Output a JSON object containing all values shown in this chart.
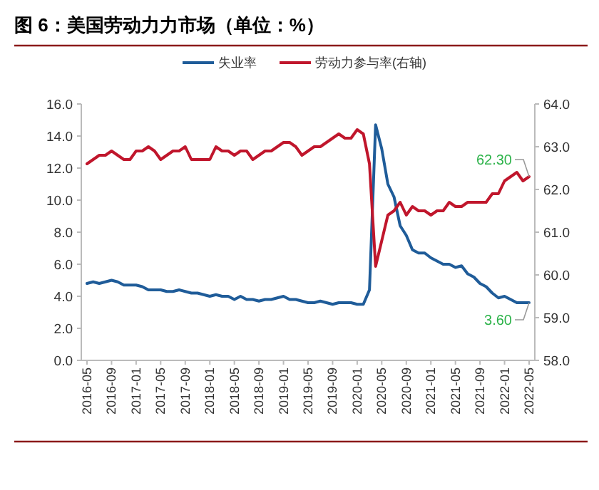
{
  "chart_data": {
    "type": "line",
    "title": "图 6：美国劳动力力市场（单位：%）",
    "categories": [
      "2016-05",
      null,
      null,
      null,
      "2016-09",
      null,
      null,
      null,
      "2017-01",
      null,
      null,
      null,
      "2017-05",
      null,
      null,
      null,
      "2017-09",
      null,
      null,
      null,
      "2018-01",
      null,
      null,
      null,
      "2018-05",
      null,
      null,
      null,
      "2018-09",
      null,
      null,
      null,
      "2019-01",
      null,
      null,
      null,
      "2019-05",
      null,
      null,
      null,
      "2019-09",
      null,
      null,
      null,
      "2020-01",
      null,
      null,
      null,
      "2020-05",
      null,
      null,
      null,
      "2020-09",
      null,
      null,
      null,
      "2021-01",
      null,
      null,
      null,
      "2021-05",
      null,
      null,
      null,
      "2021-09",
      null,
      null,
      null,
      "2022-01",
      null,
      null,
      null,
      "2022-05"
    ],
    "series": [
      {
        "name": "失业率",
        "color": "#1f5c99",
        "values": [
          4.8,
          4.9,
          4.8,
          4.9,
          5.0,
          4.9,
          4.7,
          4.7,
          4.7,
          4.6,
          4.4,
          4.4,
          4.4,
          4.3,
          4.3,
          4.4,
          4.3,
          4.2,
          4.2,
          4.1,
          4.0,
          4.1,
          4.0,
          4.0,
          3.8,
          4.0,
          3.8,
          3.8,
          3.7,
          3.8,
          3.8,
          3.9,
          4.0,
          3.8,
          3.8,
          3.7,
          3.6,
          3.6,
          3.7,
          3.6,
          3.5,
          3.6,
          3.6,
          3.6,
          3.5,
          3.5,
          4.4,
          14.7,
          13.2,
          11.0,
          10.2,
          8.4,
          7.8,
          6.9,
          6.7,
          6.7,
          6.4,
          6.2,
          6.0,
          6.0,
          5.8,
          5.9,
          5.4,
          5.2,
          4.8,
          4.6,
          4.2,
          3.9,
          4.0,
          3.8,
          3.6,
          3.6,
          3.6
        ]
      },
      {
        "name": "劳动力参与率(右轴)",
        "color": "#c0162c",
        "axis": "y2",
        "values": [
          62.6,
          62.7,
          62.8,
          62.8,
          62.9,
          62.8,
          62.7,
          62.7,
          62.9,
          62.9,
          63.0,
          62.9,
          62.7,
          62.8,
          62.9,
          62.9,
          63.0,
          62.7,
          62.7,
          62.7,
          62.7,
          63.0,
          62.9,
          62.9,
          62.8,
          62.9,
          62.9,
          62.7,
          62.8,
          62.9,
          62.9,
          63.0,
          63.1,
          63.1,
          63.0,
          62.8,
          62.9,
          63.0,
          63.0,
          63.1,
          63.2,
          63.3,
          63.2,
          63.2,
          63.4,
          63.3,
          62.6,
          60.2,
          60.8,
          61.4,
          61.5,
          61.7,
          61.4,
          61.6,
          61.5,
          61.5,
          61.4,
          61.5,
          61.5,
          61.7,
          61.6,
          61.6,
          61.7,
          61.7,
          61.7,
          61.7,
          61.9,
          61.9,
          62.2,
          62.3,
          62.4,
          62.2,
          62.3
        ]
      }
    ],
    "ylim": [
      0,
      16
    ],
    "yticks": [
      {
        "value": 0,
        "label": "0.0"
      },
      {
        "value": 2,
        "label": "2.0"
      },
      {
        "value": 4,
        "label": "4.0"
      },
      {
        "value": 6,
        "label": "6.0"
      },
      {
        "value": 8,
        "label": "8.0"
      },
      {
        "value": 10,
        "label": "10.0"
      },
      {
        "value": 12,
        "label": "12.0"
      },
      {
        "value": 14,
        "label": "14.0"
      },
      {
        "value": 16,
        "label": "16.0"
      }
    ],
    "y2lim": [
      58,
      64
    ],
    "y2ticks": [
      {
        "value": 58,
        "label": "58.0"
      },
      {
        "value": 59,
        "label": "59.0"
      },
      {
        "value": 60,
        "label": "60.0"
      },
      {
        "value": 61,
        "label": "61.0"
      },
      {
        "value": 62,
        "label": "62.0"
      },
      {
        "value": 63,
        "label": "63.0"
      },
      {
        "value": 64,
        "label": "64.0"
      }
    ],
    "annotations": [
      "3.60",
      "62.30"
    ],
    "legend": "top",
    "grid": false,
    "marker": "none",
    "line_style": "solid"
  }
}
